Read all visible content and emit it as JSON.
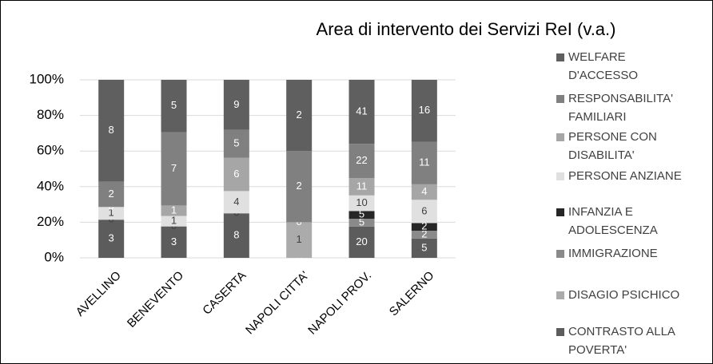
{
  "chart_data": {
    "type": "stacked_bar_100",
    "title": "Area di intervento dei Servizi ReI (v.a.)",
    "categories": [
      "AVELLINO",
      "BENEVENTO",
      "CASERTA",
      "NAPOLI CITTA'",
      "NAPOLI PROV.",
      "SALERNO"
    ],
    "series": [
      {
        "name": "CONTRASTO ALLA POVERTA'",
        "color": "#5c5c5c",
        "values": [
          3,
          3,
          8,
          0,
          20,
          5
        ]
      },
      {
        "name": "DISAGIO PSICHICO",
        "color": "#ababab",
        "values": [
          0,
          0,
          0,
          1,
          null,
          null
        ]
      },
      {
        "name": "IMMIGRAZIONE",
        "color": "#8a8a8a",
        "values": [
          null,
          null,
          null,
          0,
          5,
          2
        ]
      },
      {
        "name": "INFANZIA E ADOLESCENZA",
        "color": "#262626",
        "values": [
          null,
          null,
          null,
          null,
          5,
          2
        ]
      },
      {
        "name": "PERSONE ANZIANE",
        "color": "#e0e0e0",
        "values": [
          1,
          1,
          4,
          null,
          10,
          6
        ]
      },
      {
        "name": "PERSONE CON DISABILITA'",
        "color": "#a6a6a6",
        "values": [
          0,
          1,
          6,
          null,
          11,
          4
        ]
      },
      {
        "name": "RESPONSABILITA' FAMILIARI",
        "color": "#808080",
        "values": [
          2,
          7,
          5,
          2,
          22,
          11
        ]
      },
      {
        "name": "WELFARE D'ACCESSO",
        "color": "#5f5f5f",
        "values": [
          8,
          5,
          9,
          2,
          41,
          16
        ]
      }
    ],
    "ylim": [
      0,
      100
    ],
    "yticks": [
      {
        "value": 0,
        "label": "0%"
      },
      {
        "value": 20,
        "label": "20%"
      },
      {
        "value": 40,
        "label": "40%"
      },
      {
        "value": 60,
        "label": "60%"
      },
      {
        "value": 80,
        "label": "80%"
      },
      {
        "value": 100,
        "label": "100%"
      }
    ],
    "grid": true,
    "legend": "right"
  }
}
